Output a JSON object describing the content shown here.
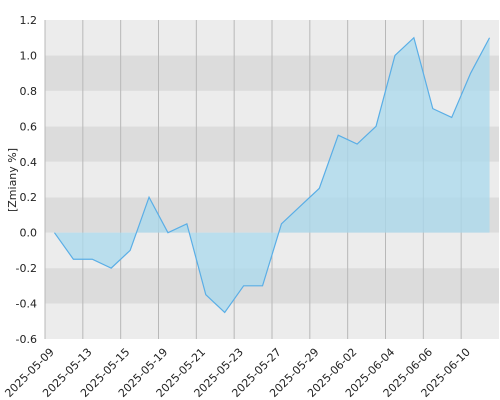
{
  "chart_data": {
    "type": "area",
    "y_label": "[Zmiany %]",
    "categories": [
      "2025-05-09",
      null,
      "2025-05-13",
      null,
      "2025-05-15",
      null,
      "2025-05-19",
      null,
      "2025-05-21",
      null,
      "2025-05-23",
      null,
      "2025-05-27",
      null,
      "2025-05-29",
      null,
      "2025-06-02",
      null,
      "2025-06-04",
      null,
      "2025-06-06",
      null,
      "2025-06-10",
      null
    ],
    "values": [
      0,
      -0.15,
      -0.15,
      -0.2,
      -0.1,
      0.2,
      0,
      0.05,
      -0.35,
      -0.45,
      -0.3,
      -0.3,
      0.05,
      0.15,
      0.25,
      0.55,
      0.5,
      0.6,
      1.0,
      1.1,
      0.7,
      0.65,
      0.9,
      1.1
    ],
    "color": "#5aaee6",
    "fill": "#a9d9ee",
    "ylim": [
      -0.6,
      1.2
    ],
    "yticks": [
      {
        "value": -0.6,
        "label": "-0.6"
      },
      {
        "value": -0.4,
        "label": "-0.4"
      },
      {
        "value": -0.2,
        "label": "-0.2"
      },
      {
        "value": 0,
        "label": "0.0"
      },
      {
        "value": 0.2,
        "label": "0.2"
      },
      {
        "value": 0.4,
        "label": "0.4"
      },
      {
        "value": 0.6,
        "label": "0.6"
      },
      {
        "value": 0.8,
        "label": "0.8"
      },
      {
        "value": 1.0,
        "label": "1.0"
      },
      {
        "value": 1.2,
        "label": "1.2"
      }
    ],
    "grid": true
  }
}
